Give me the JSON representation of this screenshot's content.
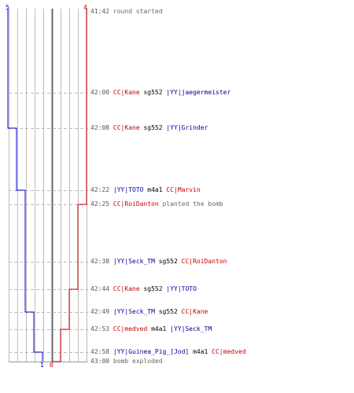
{
  "colors": {
    "team_a": "#cc0000",
    "team_b": "#0000cc",
    "grid": "#bbbbbb",
    "axis": "#666666"
  },
  "top_counts": {
    "blue": "5",
    "red": "4"
  },
  "bottom_counts": {
    "blue": "1",
    "red": "0"
  },
  "events": [
    {
      "time": "41:42",
      "type": "event",
      "text": "round started"
    },
    {
      "time": "42:00",
      "type": "kill",
      "killer": "CC|Kane",
      "killer_team": "red",
      "weapon": "sg552",
      "victim": "|YY|jaegermeister",
      "victim_team": "blue"
    },
    {
      "time": "42:08",
      "type": "kill",
      "killer": "CC|Kane",
      "killer_team": "red",
      "weapon": "sg552",
      "victim": "|YY|Grinder",
      "victim_team": "blue"
    },
    {
      "time": "42:22",
      "type": "kill",
      "killer": "|YY|TOTO",
      "killer_team": "blue",
      "weapon": "m4a1",
      "victim": "CC|Marvin",
      "victim_team": "red"
    },
    {
      "time": "42:25",
      "type": "plant",
      "actor": "CC|RoiDanton",
      "actor_team": "red",
      "text": "planted the bomb"
    },
    {
      "time": "42:38",
      "type": "kill",
      "killer": "|YY|Seck_TM",
      "killer_team": "blue",
      "weapon": "sg552",
      "victim": "CC|RoiDanton",
      "victim_team": "red"
    },
    {
      "time": "42:44",
      "type": "kill",
      "killer": "CC|Kane",
      "killer_team": "red",
      "weapon": "sg552",
      "victim": "|YY|TOTO",
      "victim_team": "blue"
    },
    {
      "time": "42:49",
      "type": "kill",
      "killer": "|YY|Seck_TM",
      "killer_team": "blue",
      "weapon": "sg552",
      "victim": "CC|Kane",
      "victim_team": "red"
    },
    {
      "time": "42:53",
      "type": "kill",
      "killer": "CC|medved",
      "killer_team": "red",
      "weapon": "m4a1",
      "victim": "|YY|Seck_TM",
      "victim_team": "blue"
    },
    {
      "time": "42:58",
      "type": "kill",
      "killer": "|YY|Guinea_Pig_[Jod]",
      "killer_team": "blue",
      "weapon": "m4a1",
      "victim": "CC|medved",
      "victim_team": "red"
    },
    {
      "time": "43:00",
      "type": "event",
      "text": "bomb exploded"
    }
  ],
  "alive_blue": [
    5,
    5,
    4,
    3,
    3,
    3,
    3,
    2,
    2,
    1,
    1
  ],
  "alive_red": [
    4,
    4,
    4,
    4,
    3,
    3,
    2,
    2,
    1,
    1,
    0
  ]
}
